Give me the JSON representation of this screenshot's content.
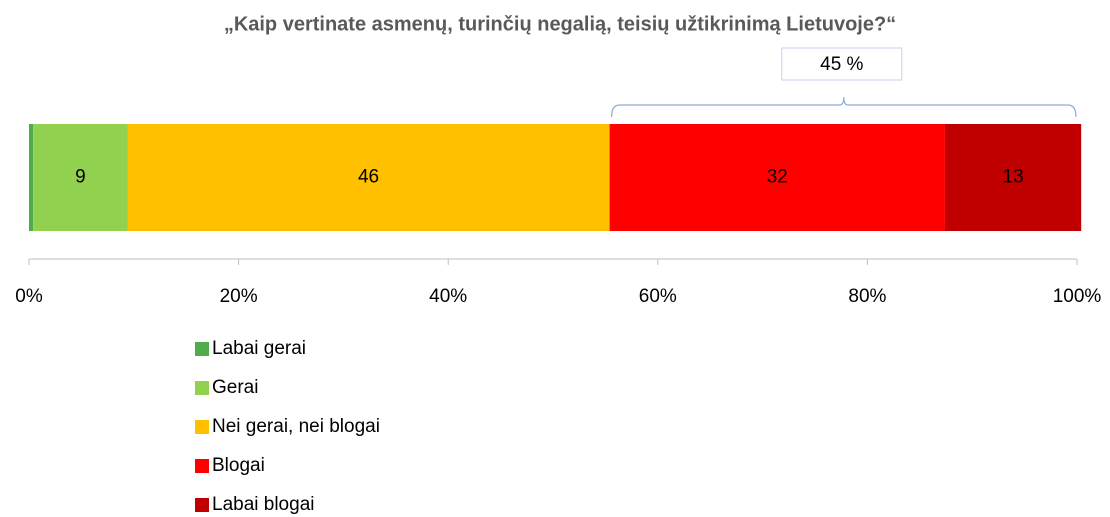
{
  "chart_data": {
    "type": "stacked-bar-horizontal",
    "title": "„Kaip vertinate asmenų, turinčių negalią, teisių užtikrinimą Lietuvoje?“",
    "series": [
      {
        "name": "Labai gerai",
        "color": "#4ead4a",
        "values": [
          0.4
        ]
      },
      {
        "name": "Gerai",
        "color": "#92d050",
        "values": [
          9
        ]
      },
      {
        "name": "Nei gerai, nei blogai",
        "color": "#ffc000",
        "values": [
          46
        ]
      },
      {
        "name": "Blogai",
        "color": "#ff0000",
        "values": [
          32
        ]
      },
      {
        "name": "Labai blogai",
        "color": "#c00000",
        "values": [
          13
        ]
      }
    ],
    "xlim": [
      0,
      100
    ],
    "xticks": [
      {
        "value": 0,
        "label": "0%"
      },
      {
        "value": 20,
        "label": "20%"
      },
      {
        "value": 40,
        "label": "40%"
      },
      {
        "value": 60,
        "label": "60%"
      },
      {
        "value": 80,
        "label": "80%"
      },
      {
        "value": 100,
        "label": "100%"
      }
    ],
    "annotation": {
      "text": "45 %"
    },
    "legend": "bottom-left"
  }
}
